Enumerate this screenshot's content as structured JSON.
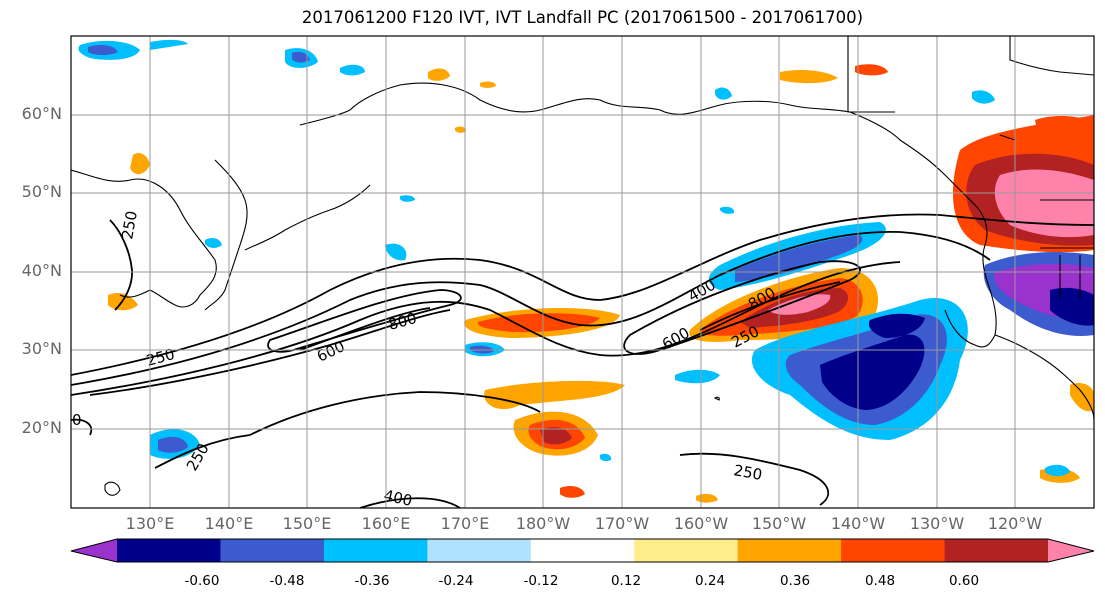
{
  "title": "2017061200 F120 IVT, IVT Landfall PC (2017061500 - 2017061700)",
  "lat_labels": [
    "60°N",
    "50°N",
    "40°N",
    "30°N",
    "20°N"
  ],
  "lon_labels": [
    "130°E",
    "140°E",
    "150°E",
    "160°E",
    "170°E",
    "180°W",
    "170°W",
    "160°W",
    "150°W",
    "140°W",
    "130°W",
    "120°W"
  ],
  "contour_labels": [
    "250",
    "250",
    "250",
    "250",
    "400",
    "400",
    "600",
    "600",
    "800",
    "800",
    "250",
    "0"
  ],
  "colorbar": {
    "colors": [
      "#9a32cd",
      "#00008b",
      "#3b5bcf",
      "#00bfff",
      "#b0e2ff",
      "#ffffff",
      "#ffec8b",
      "#ffa500",
      "#ff4500",
      "#b22222",
      "#ff82ab"
    ],
    "tick_labels": [
      "-0.60",
      "-0.48",
      "-0.36",
      "-0.24",
      "-0.12",
      "0.12",
      "0.24",
      "0.36",
      "0.48",
      "0.60"
    ]
  }
}
